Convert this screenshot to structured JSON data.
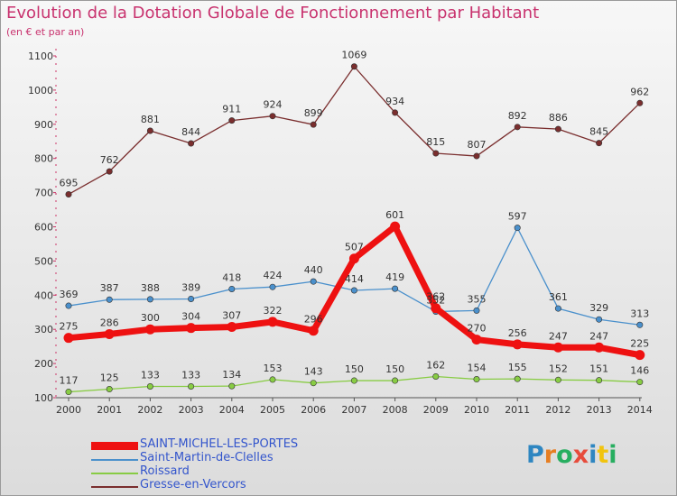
{
  "title": "Evolution de la Dotation Globale de Fonctionnement par Habitant",
  "subtitle": "(en € et par an)",
  "logo": {
    "text": "Proxiti",
    "letter_colors": [
      "#2e86c1",
      "#e67e22",
      "#27ae60",
      "#e74c3c",
      "#2e86c1",
      "#f1c40f",
      "#27ae60"
    ]
  },
  "chart_data": {
    "type": "line",
    "title": "Evolution de la Dotation Globale de Fonctionnement par Habitant",
    "subtitle": "(en € et par an)",
    "xlabel": "",
    "ylabel": "",
    "ylim": [
      100,
      1100
    ],
    "yticks": [
      100,
      200,
      300,
      400,
      500,
      600,
      700,
      800,
      900,
      1000,
      1100
    ],
    "grid": false,
    "legend_position": "bottom-left",
    "x": [
      "2000",
      "2001",
      "2002",
      "2003",
      "2004",
      "2005",
      "2006",
      "2007",
      "2008",
      "2009",
      "2010",
      "2011",
      "2012",
      "2013",
      "2014"
    ],
    "series": [
      {
        "name": "SAINT-MICHEL-LES-PORTES",
        "color": "#ee1111",
        "emphasis": true,
        "values": [
          275,
          286,
          300,
          304,
          307,
          322,
          296,
          507,
          601,
          362,
          270,
          256,
          247,
          247,
          225
        ],
        "labels": [
          "275",
          "286",
          "300",
          "304",
          "307",
          "322",
          "296",
          "507",
          "601",
          "362",
          "270",
          "256",
          "247",
          "247",
          "225"
        ]
      },
      {
        "name": "Saint-Martin-de-Clelles",
        "color": "#4a90cc",
        "emphasis": false,
        "values": [
          369,
          387,
          388,
          389,
          418,
          424,
          440,
          414,
          419,
          352,
          355,
          597,
          361,
          329,
          313
        ],
        "labels": [
          "369",
          "387",
          "388",
          "389",
          "418",
          "424",
          "440",
          "414",
          "419",
          "352",
          "355",
          "597",
          "361",
          "329",
          "313"
        ]
      },
      {
        "name": "Roissard",
        "color": "#88cc44",
        "emphasis": false,
        "values": [
          117,
          125,
          133,
          133,
          134,
          153,
          143,
          150,
          150,
          162,
          154,
          155,
          152,
          151,
          146
        ],
        "labels": [
          "117",
          "125",
          "133",
          "133",
          "134",
          "153",
          "143",
          "150",
          "150",
          "162",
          "154",
          "155",
          "152",
          "151",
          "146"
        ]
      },
      {
        "name": "Gresse-en-Vercors",
        "color": "#7a2e2e",
        "emphasis": false,
        "values": [
          695,
          762,
          881,
          844,
          911,
          924,
          899,
          1069,
          934,
          815,
          807,
          892,
          886,
          845,
          962
        ],
        "labels": [
          "695",
          "762",
          "881",
          "844",
          "911",
          "924",
          "899",
          "1069",
          "934",
          "815",
          "807",
          "892",
          "886",
          "845",
          "962"
        ]
      }
    ]
  }
}
